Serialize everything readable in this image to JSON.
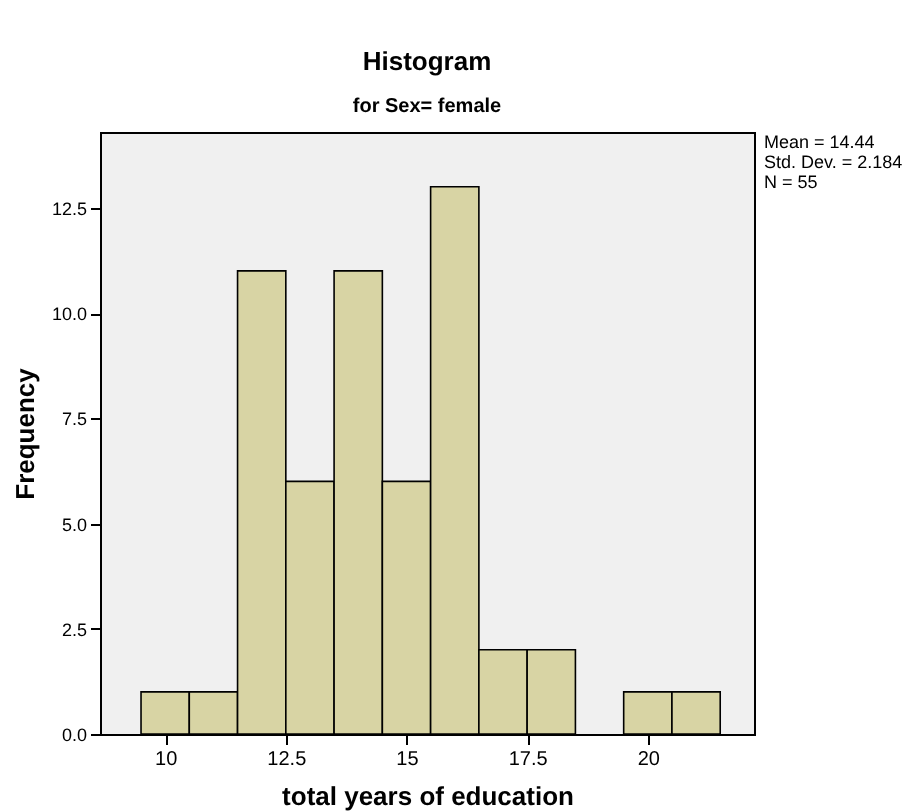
{
  "chart_data": {
    "type": "histogram",
    "title": "Histogram",
    "subtitle": "for Sex= female",
    "xlabel": "total years of education",
    "ylabel": "Frequency",
    "bins": [
      9.5,
      10.5,
      11.5,
      12.5,
      13.5,
      14.5,
      15.5,
      16.5,
      17.5,
      18.5,
      19.5,
      20.5,
      21.5
    ],
    "values": [
      1,
      1,
      11,
      6,
      11,
      6,
      13,
      2,
      2,
      0,
      1,
      1
    ],
    "color": "#d8d4a4",
    "xlim": [
      8.65,
      22.2
    ],
    "xticks": [
      10,
      12.5,
      15,
      17.5,
      20
    ],
    "ylim": [
      0,
      14.3
    ],
    "yticks": [
      {
        "value": 0,
        "label": "0.0"
      },
      {
        "value": 2.5,
        "label": "2.5"
      },
      {
        "value": 5,
        "label": "5.0"
      },
      {
        "value": 7.5,
        "label": "7.5"
      },
      {
        "value": 10,
        "label": "10.0"
      },
      {
        "value": 12.5,
        "label": "12.5"
      }
    ],
    "grid": false,
    "annotations": [
      "Mean = 14.44",
      "Std. Dev. = 2.184",
      "N = 55"
    ]
  }
}
